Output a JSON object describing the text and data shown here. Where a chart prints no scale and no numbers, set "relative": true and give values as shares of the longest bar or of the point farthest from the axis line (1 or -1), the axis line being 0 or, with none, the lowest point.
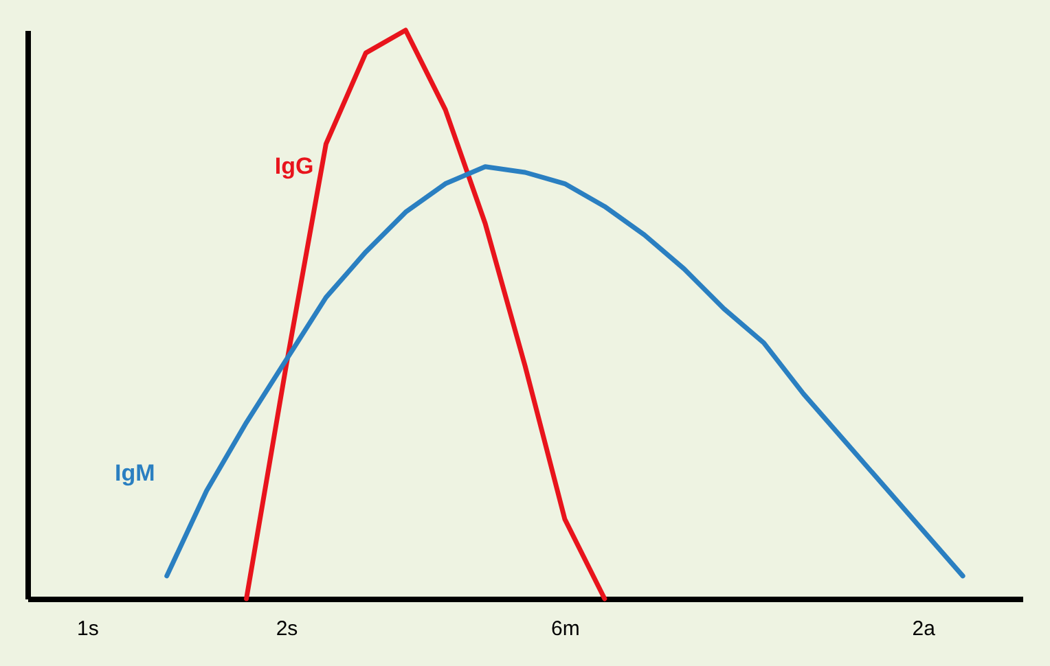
{
  "chart_data": {
    "type": "line",
    "relative": true,
    "tick_labels": "x",
    "marker": "none",
    "line_style": "solid",
    "categories": [
      null,
      "1s",
      null,
      null,
      null,
      null,
      "2s",
      null,
      null,
      null,
      null,
      null,
      null,
      "6m",
      null,
      null,
      null,
      null,
      null,
      null,
      null,
      null,
      "2a",
      null,
      null
    ],
    "series": [
      {
        "name": "IgG",
        "color": "#e8141c",
        "values": [
          null,
          null,
          null,
          null,
          null,
          0,
          0.41,
          0.8,
          0.96,
          1,
          0.86,
          0.66,
          0.41,
          0.14,
          0,
          null,
          null,
          null,
          null,
          null,
          null,
          null,
          null,
          null,
          null
        ]
      },
      {
        "name": "IgM",
        "color": "#2a7fc1",
        "values": [
          null,
          null,
          null,
          0.04,
          0.19,
          0.31,
          0.42,
          0.53,
          0.61,
          0.68,
          0.73,
          0.76,
          0.75,
          0.73,
          0.69,
          0.64,
          0.58,
          0.51,
          0.45,
          0.36,
          0.28,
          0.2,
          0.12,
          0.04,
          null
        ]
      }
    ]
  }
}
